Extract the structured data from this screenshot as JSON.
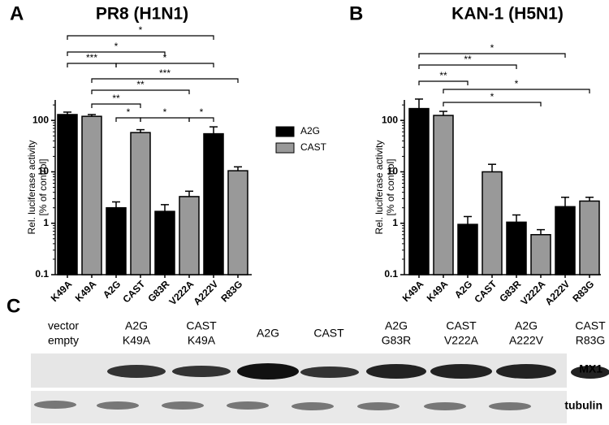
{
  "chart_data": [
    {
      "type": "bar",
      "panel_label": "A",
      "title": "PR8 (H1N1)",
      "ylabel": [
        "Rel. luciferase activity",
        "[% of control]"
      ],
      "categories": [
        "K49A",
        "K49A",
        "A2G",
        "CAST",
        "G83R",
        "V222A",
        "A222V",
        "R83G"
      ],
      "series": [
        {
          "name": "A2G",
          "color": "#000000",
          "values": [
            130,
            null,
            2,
            null,
            1.7,
            null,
            55,
            null
          ],
          "errors": [
            15,
            null,
            0.6,
            null,
            0.6,
            null,
            20,
            null
          ]
        },
        {
          "name": "CAST",
          "color": "#999999",
          "values": [
            null,
            120,
            null,
            58,
            null,
            3.3,
            null,
            10.5
          ],
          "errors": [
            null,
            10,
            null,
            8,
            null,
            0.9,
            null,
            2
          ]
        }
      ],
      "log_scale": true,
      "ylim": [
        0.1,
        250
      ],
      "yticks": [
        0.1,
        1,
        10,
        100
      ],
      "legend": "right",
      "annotations": [
        "*",
        "*",
        "***",
        "*",
        "***",
        "**",
        "**",
        "*",
        "*",
        "*"
      ]
    },
    {
      "type": "bar",
      "panel_label": "B",
      "title": "KAN-1 (H5N1)",
      "ylabel": [
        "Rel. luciferase activity",
        "[% of control]"
      ],
      "categories": [
        "K49A",
        "K49A",
        "A2G",
        "CAST",
        "G83R",
        "V222A",
        "A222V",
        "R83G"
      ],
      "series": [
        {
          "color": "#000000",
          "values": [
            170,
            null,
            0.95,
            null,
            1.05,
            null,
            2.1,
            null
          ],
          "errors": [
            90,
            null,
            0.4,
            null,
            0.4,
            null,
            1.1,
            null
          ]
        },
        {
          "color": "#999999",
          "values": [
            null,
            125,
            null,
            10,
            null,
            0.6,
            null,
            2.7
          ],
          "errors": [
            null,
            25,
            null,
            4,
            null,
            0.15,
            null,
            0.5
          ]
        }
      ],
      "log_scale": true,
      "ylim": [
        0.1,
        250
      ],
      "yticks": [
        0.1,
        1,
        10,
        100
      ],
      "annotations": [
        "*",
        "**",
        "**",
        "*",
        "*"
      ]
    }
  ],
  "blot": {
    "panel_label": "C",
    "lanes": [
      [
        "vector",
        "empty"
      ],
      [
        "A2G",
        "K49A"
      ],
      [
        "CAST",
        "K49A"
      ],
      [
        "A2G"
      ],
      [
        "CAST"
      ],
      [
        "A2G",
        "G83R"
      ],
      [
        "CAST",
        "V222A"
      ],
      [
        "A2G",
        "A222V"
      ],
      [
        "CAST",
        "R83G"
      ]
    ],
    "rows": [
      "MX1",
      "tubulin"
    ]
  }
}
